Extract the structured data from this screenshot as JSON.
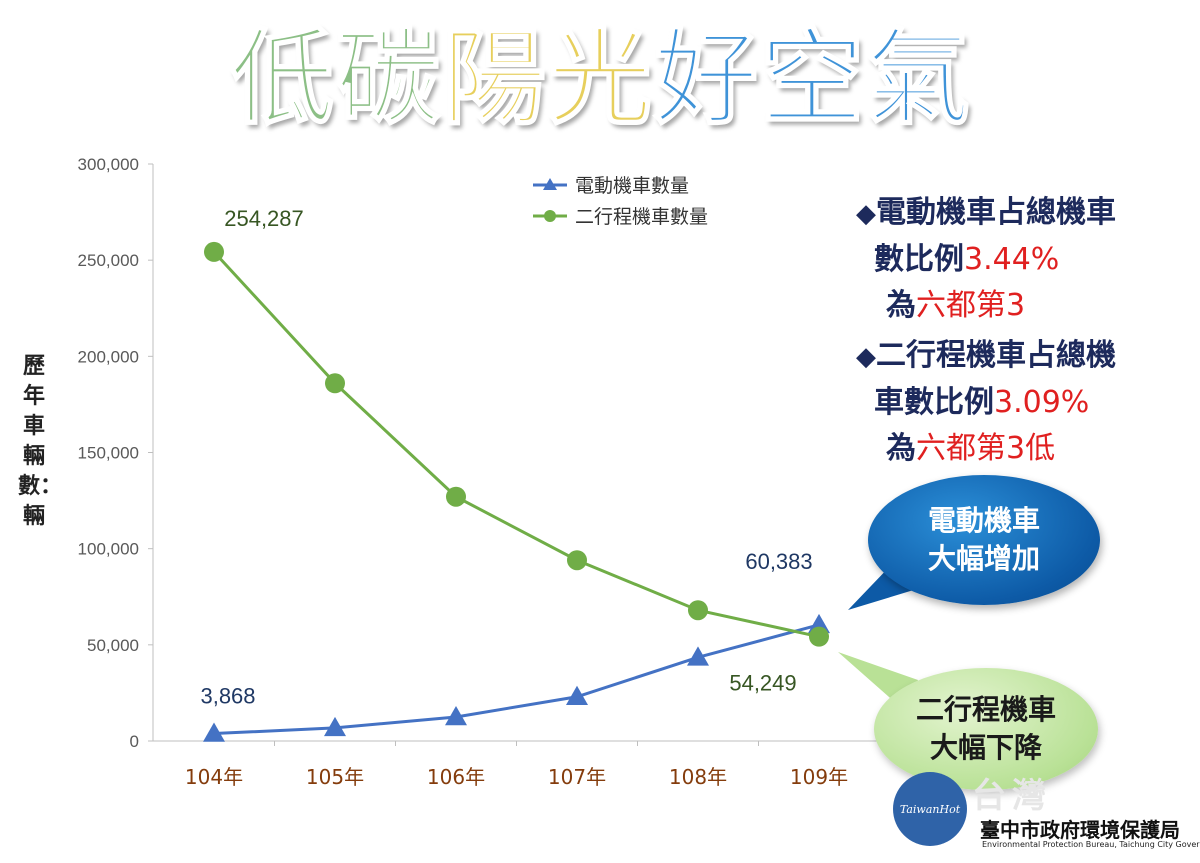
{
  "title": {
    "part1": "低碳",
    "part2": "陽光",
    "part3": "好空氣"
  },
  "colors": {
    "electric": "#4472c4",
    "twostroke": "#70ad47",
    "note_red": "#e02020",
    "note_navy": "#1d2a5c"
  },
  "notes": {
    "item1": {
      "bullet": "◆",
      "line1": "電動機車占總機車",
      "line2_prefix": "數比例",
      "line2_value": "3.44%",
      "line3_prefix": "為",
      "line3_value": "六都第3"
    },
    "item2": {
      "bullet": "◆",
      "line1": "二行程機車占總機",
      "line2_prefix": "車數比例",
      "line2_value": "3.09%",
      "line3_prefix": "為",
      "line3_value": "六都第3低"
    }
  },
  "callouts": {
    "electric": {
      "line1": "電動機車",
      "line2": "大幅增加"
    },
    "twostroke": {
      "line1": "二行程機車",
      "line2": "大幅下降"
    }
  },
  "logo": {
    "circle_text": "TaiwanHot",
    "watermark": "台灣",
    "org_name": "臺中市政府環境保護局",
    "org_name_en": "Environmental Protection Bureau, Taichung City Government"
  },
  "chart_data": {
    "type": "line",
    "categories": [
      "104年",
      "105年",
      "106年",
      "107年",
      "108年",
      "109年"
    ],
    "ylabel": "歷年車輛數：輛",
    "xlabel": "",
    "ylim": [
      0,
      300000
    ],
    "yticks": [
      0,
      50000,
      100000,
      150000,
      200000,
      250000,
      300000
    ],
    "ytick_labels": [
      "0",
      "50,000",
      "100,000",
      "150,000",
      "200,000",
      "250,000",
      "300,000"
    ],
    "grid": false,
    "legend_position": "top-center",
    "series": [
      {
        "name": "電動機車數量",
        "marker": "triangle",
        "color": "#4472c4",
        "values": [
          3868,
          6800,
          12500,
          23000,
          43500,
          60383
        ],
        "data_labels": [
          {
            "index": 0,
            "text": "3,868"
          },
          {
            "index": 5,
            "text": "60,383"
          }
        ]
      },
      {
        "name": "二行程機車數量",
        "marker": "circle",
        "color": "#70ad47",
        "values": [
          254287,
          186000,
          127000,
          94000,
          68000,
          54249
        ],
        "data_labels": [
          {
            "index": 0,
            "text": "254,287"
          },
          {
            "index": 5,
            "text": "54,249"
          }
        ]
      }
    ]
  }
}
